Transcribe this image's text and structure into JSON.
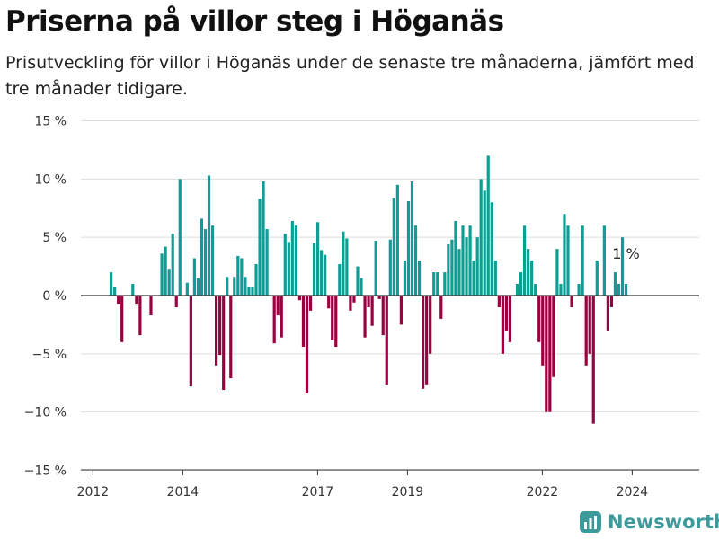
{
  "header": {
    "title": "Priserna på villor steg i Höganäs",
    "subtitle": "Prisutveckling för villor i Höganäs under de senaste tre månaderna, jämfört med tre månader tidigare."
  },
  "brand": {
    "name": "Newsworthy"
  },
  "colors": {
    "positive": "#0e9e96",
    "negative": "#990040",
    "grid": "#dddddd",
    "axis": "#333333",
    "brand": "#3d9a9b"
  },
  "chart_data": {
    "type": "bar",
    "title": "Priserna på villor steg i Höganäs",
    "subtitle": "Prisutveckling för villor i Höganäs under de senaste tre månaderna, jämfört med tre månader tidigare.",
    "xlabel": "",
    "ylabel": "",
    "start": "2012-06",
    "ylim": [
      -15,
      15
    ],
    "yticks": [
      15,
      10,
      5,
      0,
      -5,
      -10,
      -15
    ],
    "ytick_labels": [
      "15 %",
      "10 %",
      "5 %",
      "0 %",
      "−5 %",
      "−10 %",
      "−15 %"
    ],
    "xticks": [
      2012,
      2014,
      2017,
      2019,
      2022,
      2024
    ],
    "grid": true,
    "annotation": {
      "text": "1 %",
      "target": "last"
    },
    "values": [
      2,
      0.7,
      -0.7,
      -4,
      0,
      0,
      1,
      -0.7,
      -3.4,
      0,
      0,
      -1.7,
      0,
      0,
      3.6,
      4.2,
      2.3,
      5.3,
      -1,
      10,
      0,
      1.1,
      -7.8,
      3.2,
      1.5,
      6.6,
      5.7,
      10.3,
      6,
      -6,
      -5.1,
      -8.1,
      1.6,
      -7.1,
      1.6,
      3.4,
      3.2,
      1.6,
      0.7,
      0.7,
      2.7,
      8.3,
      9.8,
      5.7,
      0,
      -4.1,
      -1.7,
      -3.6,
      5.3,
      4.6,
      6.4,
      6,
      -0.4,
      -4.4,
      -8.4,
      -1.3,
      4.5,
      6.3,
      3.9,
      3.5,
      -1.1,
      -3.8,
      -4.4,
      2.7,
      5.5,
      4.9,
      -1.3,
      -0.6,
      2.5,
      1.5,
      -3.6,
      -1,
      -2.6,
      4.7,
      -0.3,
      -3.4,
      -7.7,
      4.8,
      8.4,
      9.5,
      -2.5,
      3,
      8.1,
      9.8,
      6,
      3,
      -8,
      -7.7,
      -5,
      2,
      2,
      -2,
      2,
      4.4,
      4.8,
      6.4,
      4,
      6,
      5,
      6,
      3,
      5,
      10,
      9,
      12,
      8,
      3,
      -1,
      -5,
      -3,
      -4,
      0,
      1,
      2,
      6,
      4,
      3,
      1,
      -4,
      -6,
      -10,
      -10,
      -7,
      4,
      1,
      7,
      6,
      -1,
      0,
      1,
      6,
      -6,
      -5,
      -11,
      3,
      0,
      6,
      -3,
      -1,
      2,
      1,
      5,
      1
    ]
  }
}
